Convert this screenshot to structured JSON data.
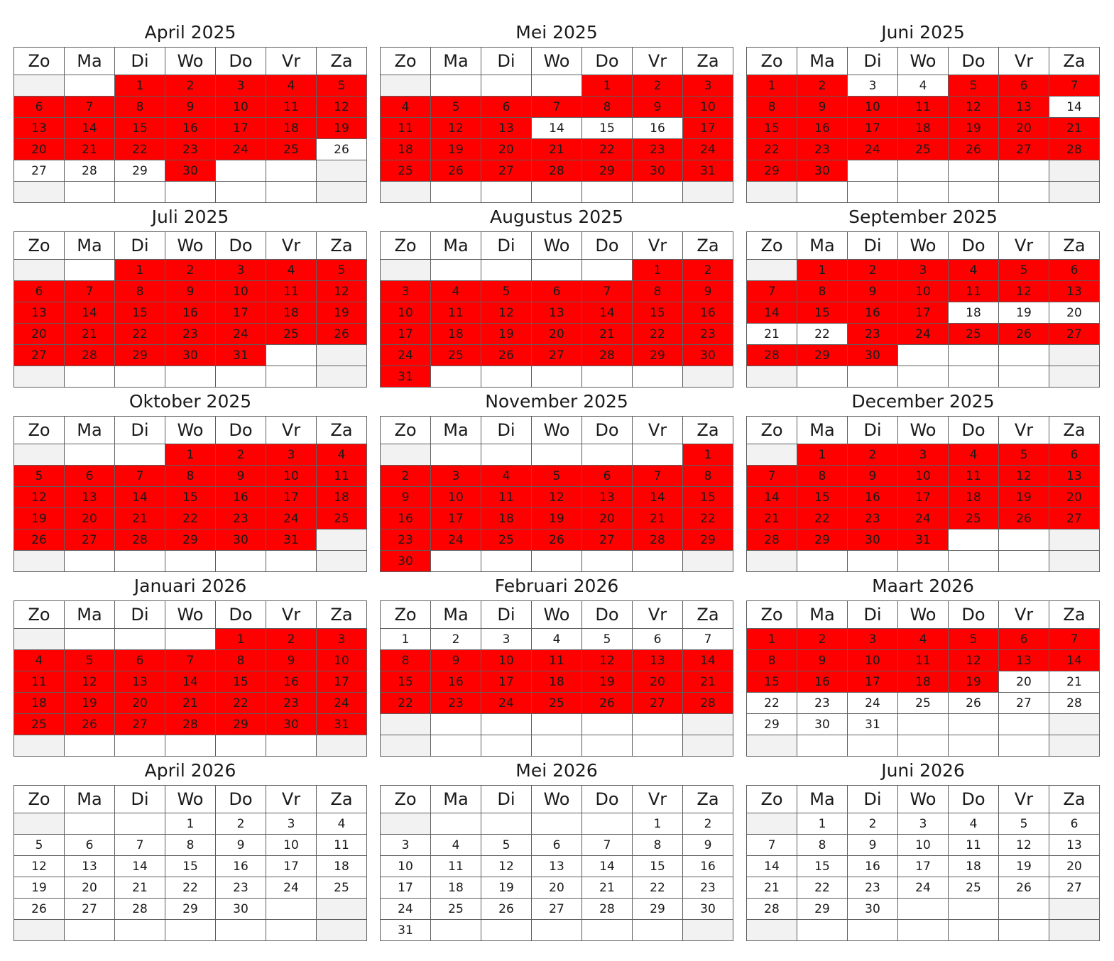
{
  "weekdays": [
    "Zo",
    "Ma",
    "Di",
    "Wo",
    "Do",
    "Vr",
    "Za"
  ],
  "colors": {
    "highlight": "#ff0000",
    "weekend_blank": "#f2f2f2",
    "border": "#5e5e5e"
  },
  "months": [
    {
      "title": "April 2025",
      "first_weekday": 2,
      "days": 30,
      "highlighted": [
        [
          1,
          25
        ],
        [
          30,
          30
        ]
      ]
    },
    {
      "title": "Mei 2025",
      "first_weekday": 4,
      "days": 31,
      "highlighted": [
        [
          1,
          13
        ],
        [
          17,
          31
        ]
      ]
    },
    {
      "title": "Juni 2025",
      "first_weekday": 0,
      "days": 30,
      "highlighted": [
        [
          1,
          2
        ],
        [
          5,
          13
        ],
        [
          15,
          30
        ]
      ]
    },
    {
      "title": "Juli 2025",
      "first_weekday": 2,
      "days": 31,
      "highlighted": [
        [
          1,
          31
        ]
      ]
    },
    {
      "title": "Augustus 2025",
      "first_weekday": 5,
      "days": 31,
      "highlighted": [
        [
          1,
          31
        ]
      ]
    },
    {
      "title": "September 2025",
      "first_weekday": 1,
      "days": 30,
      "highlighted": [
        [
          1,
          17
        ],
        [
          23,
          30
        ]
      ]
    },
    {
      "title": "Oktober 2025",
      "first_weekday": 3,
      "days": 31,
      "highlighted": [
        [
          1,
          31
        ]
      ]
    },
    {
      "title": "November 2025",
      "first_weekday": 6,
      "days": 30,
      "highlighted": [
        [
          1,
          30
        ]
      ]
    },
    {
      "title": "December 2025",
      "first_weekday": 1,
      "days": 31,
      "highlighted": [
        [
          1,
          31
        ]
      ]
    },
    {
      "title": "Januari 2026",
      "first_weekday": 4,
      "days": 31,
      "highlighted": [
        [
          1,
          31
        ]
      ]
    },
    {
      "title": "Februari 2026",
      "first_weekday": 0,
      "days": 28,
      "highlighted": [
        [
          8,
          28
        ]
      ]
    },
    {
      "title": "Maart 2026",
      "first_weekday": 0,
      "days": 31,
      "highlighted": [
        [
          1,
          19
        ]
      ]
    },
    {
      "title": "April 2026",
      "first_weekday": 3,
      "days": 30,
      "highlighted": []
    },
    {
      "title": "Mei 2026",
      "first_weekday": 5,
      "days": 31,
      "highlighted": []
    },
    {
      "title": "Juni 2026",
      "first_weekday": 1,
      "days": 30,
      "highlighted": []
    }
  ]
}
